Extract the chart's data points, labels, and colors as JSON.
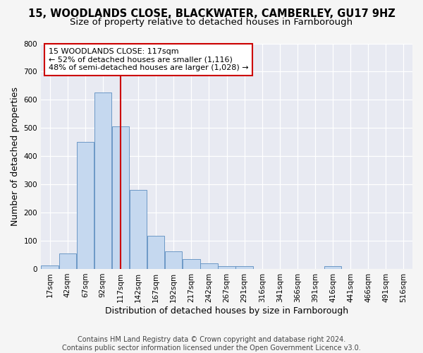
{
  "title_line1": "15, WOODLANDS CLOSE, BLACKWATER, CAMBERLEY, GU17 9HZ",
  "title_line2": "Size of property relative to detached houses in Farnborough",
  "xlabel": "Distribution of detached houses by size in Farnborough",
  "ylabel": "Number of detached properties",
  "bar_labels": [
    "17sqm",
    "42sqm",
    "67sqm",
    "92sqm",
    "117sqm",
    "142sqm",
    "167sqm",
    "192sqm",
    "217sqm",
    "242sqm",
    "267sqm",
    "291sqm",
    "316sqm",
    "341sqm",
    "366sqm",
    "391sqm",
    "416sqm",
    "441sqm",
    "466sqm",
    "491sqm",
    "516sqm"
  ],
  "bar_values": [
    12,
    55,
    450,
    625,
    505,
    280,
    117,
    62,
    35,
    20,
    10,
    8,
    0,
    0,
    0,
    0,
    8,
    0,
    0,
    0,
    0
  ],
  "bar_color": "#c5d8ef",
  "bar_edge_color": "#5b8dbf",
  "vline_color": "#cc0000",
  "annotation_text": "15 WOODLANDS CLOSE: 117sqm\n← 52% of detached houses are smaller (1,116)\n48% of semi-detached houses are larger (1,028) →",
  "annotation_box_color": "#ffffff",
  "annotation_border_color": "#cc0000",
  "ylim": [
    0,
    800
  ],
  "yticks": [
    0,
    100,
    200,
    300,
    400,
    500,
    600,
    700,
    800
  ],
  "fig_bg_color": "#f5f5f5",
  "axes_bg_color": "#e8eaf2",
  "grid_color": "#ffffff",
  "footer_text": "Contains HM Land Registry data © Crown copyright and database right 2024.\nContains public sector information licensed under the Open Government Licence v3.0.",
  "title_fontsize": 10.5,
  "subtitle_fontsize": 9.5,
  "tick_fontsize": 7.5,
  "ylabel_fontsize": 9,
  "xlabel_fontsize": 9,
  "annotation_fontsize": 8,
  "footer_fontsize": 7
}
